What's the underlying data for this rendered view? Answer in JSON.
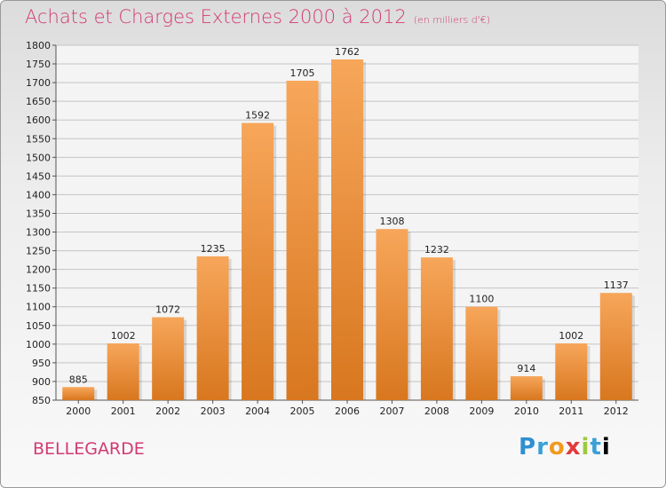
{
  "title": "Achats et Charges Externes 2000 à 2012",
  "subtitle": "(en milliers d'€)",
  "location": "BELLEGARDE",
  "brand": "Proxiti",
  "colors": {
    "title": "#d23a73",
    "bar_top": "#f7a65a",
    "bar_bottom": "#d8771f",
    "grid": "#c4c4c4"
  },
  "chart_data": {
    "type": "bar",
    "categories": [
      "2000",
      "2001",
      "2002",
      "2003",
      "2004",
      "2005",
      "2006",
      "2007",
      "2008",
      "2009",
      "2010",
      "2011",
      "2012"
    ],
    "values": [
      885,
      1002,
      1072,
      1235,
      1592,
      1705,
      1762,
      1308,
      1232,
      1100,
      914,
      1002,
      1137
    ],
    "ylim": [
      850,
      1800
    ],
    "yticks": [
      850,
      900,
      950,
      1000,
      1050,
      1100,
      1150,
      1200,
      1250,
      1300,
      1350,
      1400,
      1450,
      1500,
      1550,
      1600,
      1650,
      1700,
      1750,
      1800
    ],
    "grid": true,
    "legend": "none"
  }
}
